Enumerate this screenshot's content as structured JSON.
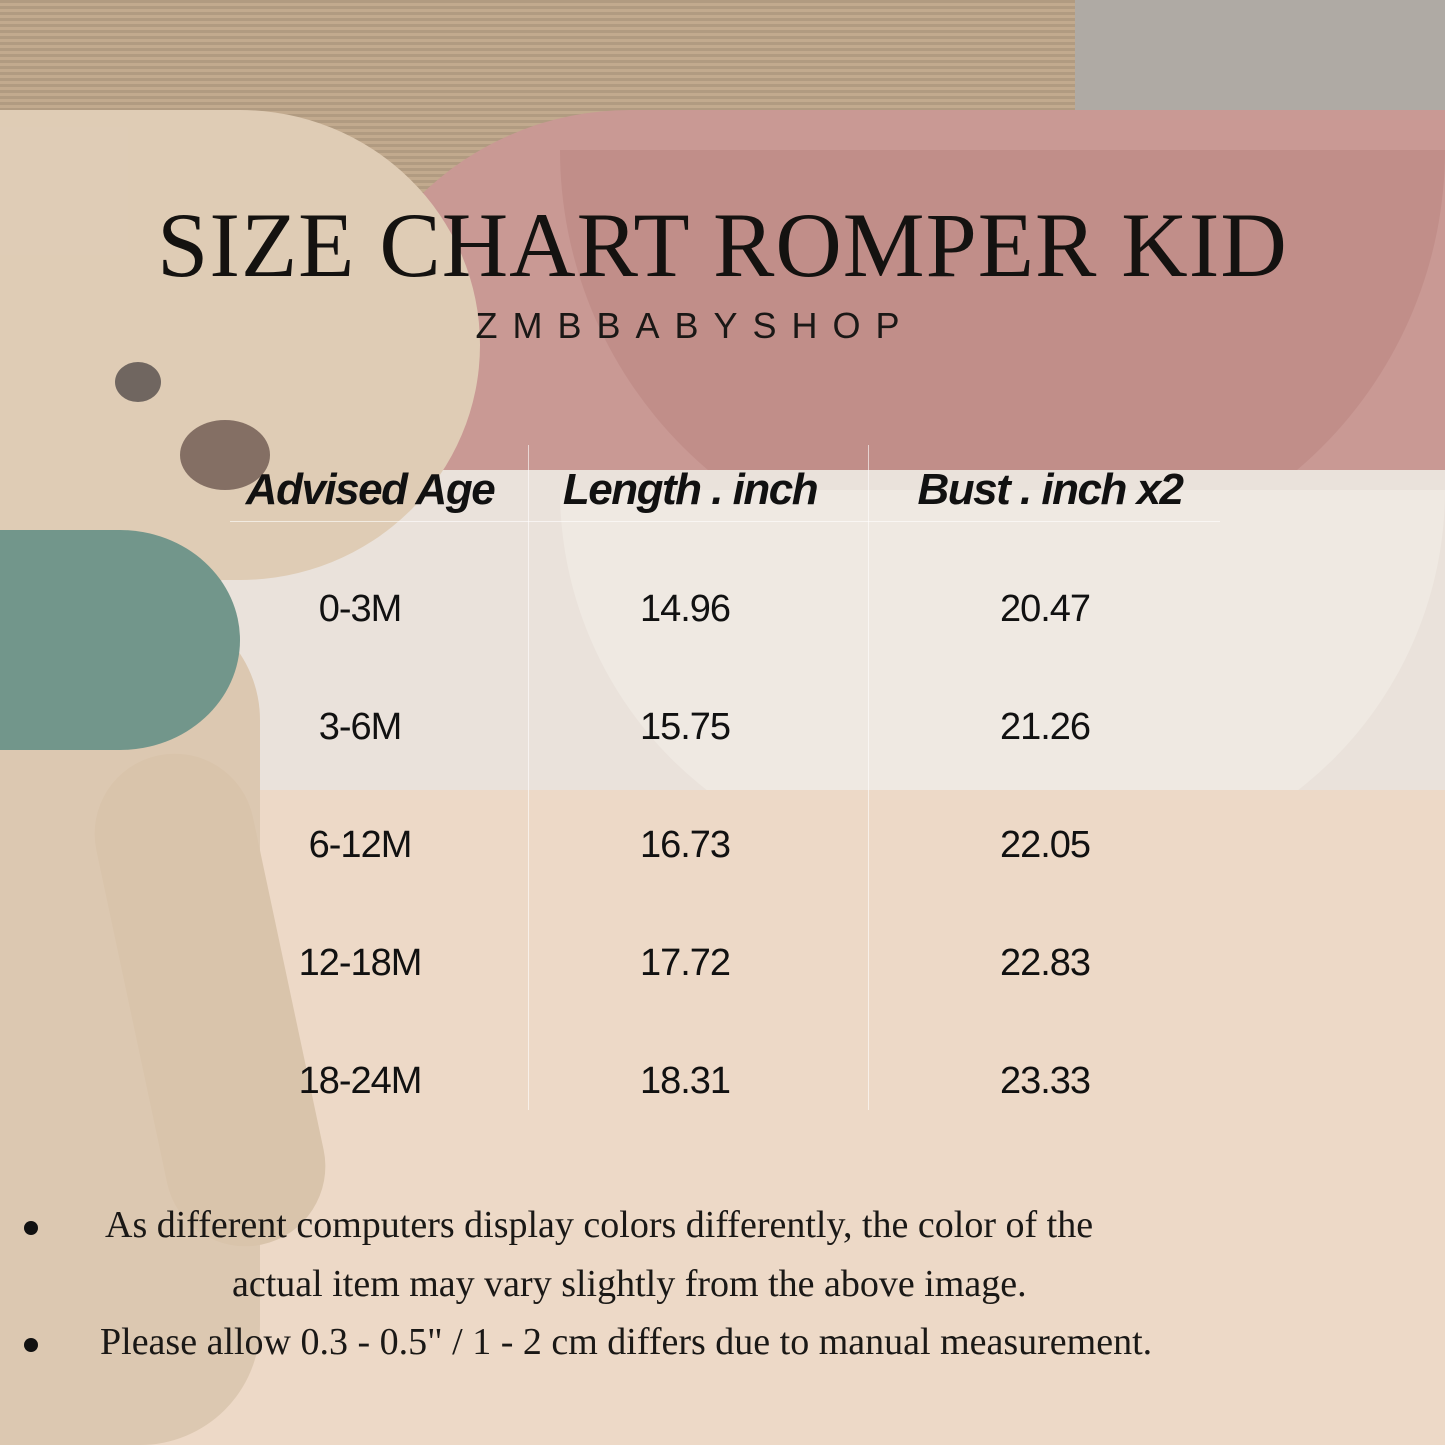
{
  "title": "SIZE CHART ROMPER KID",
  "subtitle": "ZMBBABYSHOP",
  "table": {
    "headers": [
      "Advised Age",
      "Length . inch",
      "Bust . inch x2"
    ],
    "rows": [
      [
        "0-3M",
        "14.96",
        "20.47"
      ],
      [
        "3-6M",
        "15.75",
        "21.26"
      ],
      [
        "6-12M",
        "16.73",
        "22.05"
      ],
      [
        "12-18M",
        "17.72",
        "22.83"
      ],
      [
        "18-24M",
        "18.31",
        "23.33"
      ]
    ]
  },
  "notes": [
    "As different computers display colors differently, the color of the",
    "actual item may vary slightly from the above image.",
    "Please allow 0.3 - 0.5\" / 1 - 2 cm differs due to manual measurement."
  ]
}
